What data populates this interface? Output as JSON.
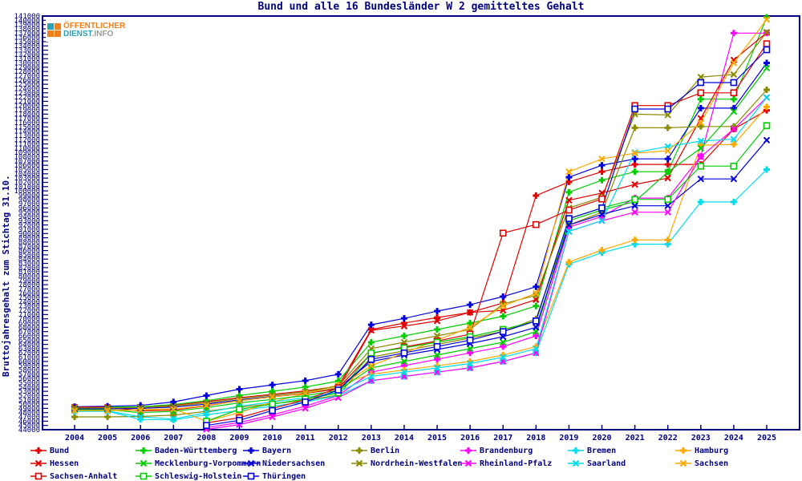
{
  "logo": {
    "line1": "ÖFFENTLICHER",
    "line2_part1": "DIENST",
    "line2_part2": ".INFO",
    "orange": "#f07f1e",
    "teal": "#2f9fb4",
    "gray": "#9a9a9a"
  },
  "chart_data": {
    "type": "line",
    "title": "Bund und alle 16 Bundesländer W 2 gemitteltes Gehalt",
    "ylabel": "Bruttojahresgehalt zum Stichtag 31.10.",
    "xlabel": "",
    "grid": false,
    "legend_position": "bottom",
    "axis_color": "#000080",
    "ylim": [
      44000,
      141000
    ],
    "ytick_step": 1000,
    "x": [
      2004,
      2005,
      2006,
      2007,
      2008,
      2009,
      2010,
      2011,
      2012,
      2013,
      2014,
      2015,
      2016,
      2017,
      2018,
      2019,
      2020,
      2021,
      2022,
      2023,
      2024,
      2025
    ],
    "series": [
      {
        "name": "Bund",
        "color": "#e10000",
        "marker": "plus",
        "legend_col": 0,
        "legend_row": 0,
        "values": [
          49000,
          49100,
          49200,
          49700,
          50600,
          51500,
          52300,
          53100,
          54200,
          67500,
          69000,
          70300,
          71500,
          73700,
          98900,
          102100,
          104500,
          106200,
          106200,
          106200,
          114500,
          118900
        ]
      },
      {
        "name": "Baden-Württemberg",
        "color": "#00cc00",
        "marker": "plus",
        "legend_col": 1,
        "legend_row": 0,
        "values": [
          49200,
          49300,
          49400,
          49900,
          50800,
          52000,
          53000,
          54000,
          55400,
          64500,
          66000,
          67500,
          69000,
          70600,
          73000,
          99700,
          102500,
          104500,
          104500,
          121500,
          121500,
          140700
        ]
      },
      {
        "name": "Bayern",
        "color": "#0000dd",
        "marker": "plus",
        "legend_col": 2,
        "legend_row": 0,
        "values": [
          49400,
          49500,
          49700,
          50500,
          52000,
          53500,
          54500,
          55500,
          57000,
          68600,
          70100,
          71800,
          73300,
          75200,
          77500,
          103200,
          106000,
          107500,
          107500,
          119400,
          119400,
          130000
        ]
      },
      {
        "name": "Berlin",
        "color": "#8b8b00",
        "marker": "plus",
        "legend_col": 3,
        "legend_row": 0,
        "values": [
          47000,
          47000,
          47100,
          47400,
          48300,
          49300,
          50100,
          50900,
          52100,
          61000,
          62500,
          64000,
          65500,
          67000,
          70000,
          92000,
          95000,
          114800,
          114800,
          115100,
          115100,
          123700
        ]
      },
      {
        "name": "Brandenburg",
        "color": "#ff00ff",
        "marker": "plus",
        "legend_col": 4,
        "legend_row": 0,
        "values": [
          null,
          null,
          null,
          null,
          44500,
          45700,
          47500,
          49500,
          52000,
          57500,
          59000,
          60500,
          62000,
          63500,
          66000,
          91500,
          94000,
          98300,
          98300,
          108100,
          137000,
          137000
        ]
      },
      {
        "name": "Bremen",
        "color": "#00dcec",
        "marker": "plus",
        "legend_col": 5,
        "legend_row": 0,
        "values": [
          48300,
          48300,
          46400,
          46300,
          47500,
          48500,
          49500,
          50500,
          52000,
          55500,
          56500,
          57500,
          58500,
          60000,
          62000,
          82800,
          85500,
          87500,
          87500,
          97400,
          97400,
          105000
        ]
      },
      {
        "name": "Hamburg",
        "color": "#ffa800",
        "marker": "plus",
        "legend_col": 6,
        "legend_row": 0,
        "values": [
          48600,
          48600,
          48700,
          48900,
          46000,
          48000,
          50500,
          52500,
          54500,
          57000,
          58000,
          59000,
          60000,
          61500,
          63500,
          83300,
          86100,
          88500,
          88500,
          110700,
          110900,
          119700
        ]
      },
      {
        "name": "Hessen",
        "color": "#e10000",
        "marker": "x",
        "legend_col": 0,
        "legend_row": 1,
        "values": [
          49300,
          49300,
          48400,
          48600,
          49600,
          50800,
          51700,
          52500,
          53600,
          67300,
          68300,
          69500,
          71500,
          72000,
          74500,
          97800,
          99500,
          101500,
          103000,
          117000,
          130700,
          137100
        ]
      },
      {
        "name": "Mecklenburg-Vorpommern",
        "color": "#00cc00",
        "marker": "x",
        "legend_col": 1,
        "legend_row": 1,
        "values": [
          48700,
          48700,
          48000,
          48300,
          49200,
          50300,
          51100,
          52000,
          53200,
          58500,
          60000,
          61500,
          63000,
          64500,
          67000,
          93000,
          95500,
          97500,
          104400,
          110000,
          118600,
          128800
        ]
      },
      {
        "name": "Niedersachsen",
        "color": "#0000dd",
        "marker": "x",
        "legend_col": 2,
        "legend_row": 1,
        "values": [
          48900,
          48900,
          49000,
          49300,
          50000,
          51000,
          51800,
          52600,
          53800,
          60000,
          61500,
          62800,
          64200,
          65800,
          68000,
          92000,
          94500,
          96500,
          96500,
          102800,
          102800,
          111900
        ]
      },
      {
        "name": "Nordrhein-Westfalen",
        "color": "#8b8b00",
        "marker": "x",
        "legend_col": 3,
        "legend_row": 1,
        "values": [
          49100,
          49100,
          49200,
          49500,
          50300,
          51300,
          52100,
          52900,
          54200,
          63000,
          64500,
          66000,
          67500,
          73500,
          75500,
          96000,
          98500,
          118000,
          117800,
          126700,
          127300,
          137200
        ]
      },
      {
        "name": "Rheinland-Pfalz",
        "color": "#ff00ff",
        "marker": "x",
        "legend_col": 4,
        "legend_row": 1,
        "values": [
          null,
          null,
          null,
          null,
          44100,
          45200,
          47000,
          49000,
          51500,
          55500,
          56500,
          57500,
          58500,
          60000,
          62000,
          90500,
          93000,
          95000,
          95000,
          108000,
          114500,
          121900
        ]
      },
      {
        "name": "Saarland",
        "color": "#00dcec",
        "marker": "x",
        "legend_col": 5,
        "legend_row": 1,
        "values": [
          48400,
          48400,
          47000,
          46500,
          48000,
          49500,
          50500,
          51500,
          52800,
          56500,
          57500,
          58500,
          59500,
          61000,
          63000,
          90500,
          93000,
          109000,
          110400,
          111700,
          112100,
          121900
        ]
      },
      {
        "name": "Sachsen",
        "color": "#ffa800",
        "marker": "x",
        "legend_col": 6,
        "legend_row": 1,
        "values": [
          48500,
          48500,
          48600,
          48800,
          49700,
          50800,
          51700,
          52600,
          53900,
          59000,
          62000,
          65000,
          68000,
          73000,
          76000,
          104500,
          107500,
          108850,
          109400,
          116000,
          130000,
          140200
        ]
      },
      {
        "name": "Sachsen-Anhalt",
        "color": "#e10000",
        "marker": "square",
        "legend_col": 0,
        "legend_row": 2,
        "values": [
          null,
          null,
          null,
          null,
          45600,
          46800,
          49000,
          51000,
          53800,
          61900,
          63400,
          64800,
          66400,
          90100,
          92100,
          95500,
          98100,
          120000,
          120000,
          123000,
          123000,
          134500
        ]
      },
      {
        "name": "Schleswig-Holstein",
        "color": "#00cc00",
        "marker": "square",
        "legend_col": 1,
        "legend_row": 2,
        "values": [
          null,
          null,
          null,
          null,
          46000,
          48800,
          50000,
          51200,
          52600,
          62000,
          63200,
          64500,
          65800,
          67500,
          69500,
          93500,
          96000,
          98000,
          98000,
          105800,
          105800,
          115300
        ]
      },
      {
        "name": "Thüringen",
        "color": "#0000dd",
        "marker": "square",
        "legend_col": 2,
        "legend_row": 2,
        "values": [
          null,
          null,
          null,
          null,
          45000,
          46200,
          48500,
          50500,
          53300,
          60500,
          62000,
          63500,
          65000,
          67000,
          69500,
          93500,
          96000,
          119200,
          119200,
          125400,
          125400,
          133100
        ]
      }
    ]
  }
}
